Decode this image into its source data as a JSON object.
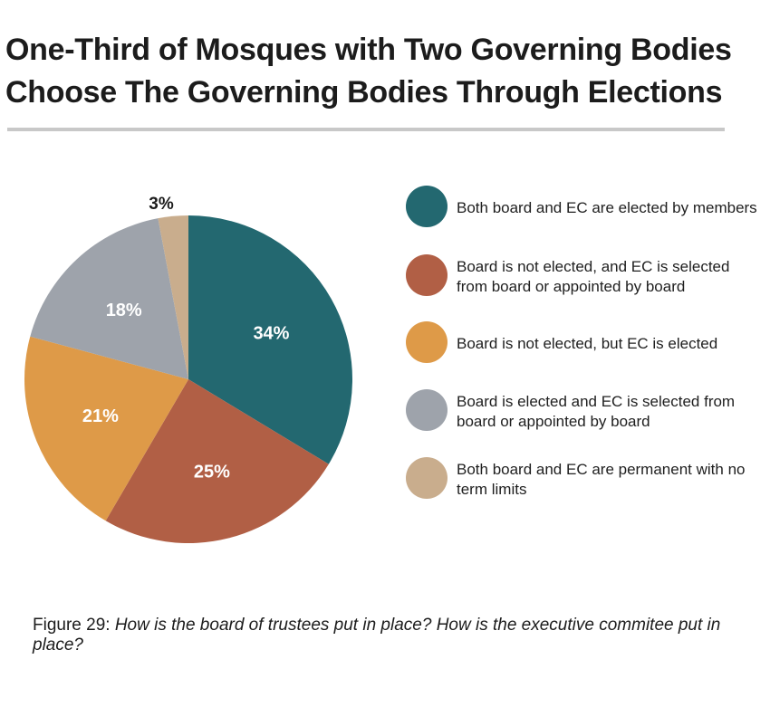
{
  "title_line1": "One-Third of Mosques with Two Governing Bodies",
  "title_line2": "Choose The Governing Bodies Through Elections",
  "caption": {
    "figure_label": "Figure 29:",
    "question": "How is the board of trustees put in place? How is the executive commitee put in place?"
  },
  "chart_data": {
    "type": "pie",
    "start": "12 o'clock, clockwise",
    "slices": [
      {
        "label": "Both board and EC are elected by members",
        "value": 34,
        "value_label": "34%",
        "color": "#236870"
      },
      {
        "label": "Board is not elected, and EC is selected from board or appointed by board",
        "value": 25,
        "value_label": "25%",
        "color": "#b15f45"
      },
      {
        "label": "Board is not elected, but EC is elected",
        "value": 21,
        "value_label": "21%",
        "color": "#de9a48"
      },
      {
        "label": "Board is elected and EC is selected from board or appointed by board",
        "value": 18,
        "value_label": "18%",
        "color": "#9ea3ab"
      },
      {
        "label": "Both board and EC are permanent with no term limits",
        "value": 3,
        "value_label": "3%",
        "color": "#c9ad8d"
      }
    ],
    "legend_position": "right"
  }
}
